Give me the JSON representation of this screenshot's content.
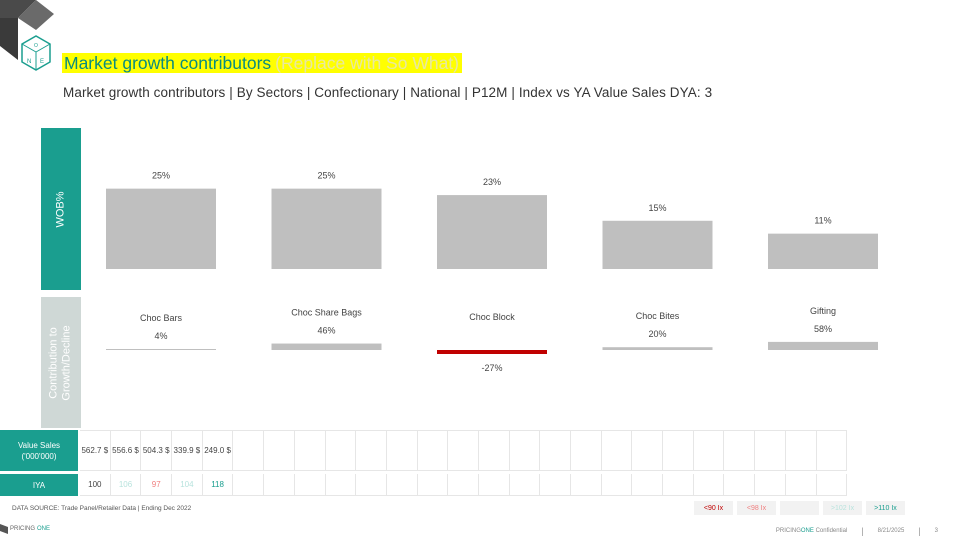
{
  "header": {
    "title_main": "Market growth contributors",
    "title_so_what": "(Replace with So What)",
    "subtitle": "Market growth contributors | By Sectors | Confectionary | National | P12M | Index vs YA Value Sales DYA: 3",
    "logo_text": "ONE"
  },
  "side_labels": {
    "wob": "WOB%",
    "contribution": "Contribution to Growth/Decline"
  },
  "chart_data": [
    {
      "type": "bar",
      "title": "",
      "ylabel": "WOB%",
      "categories": [
        "Choc Bars",
        "Choc Share Bags",
        "Choc Block",
        "Choc Bites",
        "Gifting"
      ],
      "values": [
        25,
        25,
        23,
        15,
        11
      ],
      "value_labels": [
        "25%",
        "25%",
        "23%",
        "15%",
        "11%"
      ],
      "ylim": [
        0,
        28
      ],
      "colors": {
        "bar": "#bfbfbf"
      }
    },
    {
      "type": "bar",
      "title": "",
      "ylabel": "Contribution to Growth/Decline",
      "categories": [
        "Choc Bars",
        "Choc Share Bags",
        "Choc Block",
        "Choc Bites",
        "Gifting"
      ],
      "values": [
        4,
        46,
        -27,
        20,
        58
      ],
      "value_labels": [
        "4%",
        "46%",
        "-27%",
        "20%",
        "58%"
      ],
      "colors": {
        "positive": "#bfbfbf",
        "negative": "#c00000"
      }
    }
  ],
  "table": {
    "value_sales_label": "Value Sales ('000'000)",
    "iya_label": "IYA",
    "value_sales": [
      "562.7 $",
      "556.6 $",
      "504.3 $",
      "339.9 $",
      "249.0 $"
    ],
    "iya": [
      {
        "value": "100",
        "color": "#444444"
      },
      {
        "value": "106",
        "color": "#b8e3dd"
      },
      {
        "value": "97",
        "color": "#f08080"
      },
      {
        "value": "104",
        "color": "#b8e3dd"
      },
      {
        "value": "118",
        "color": "#1a9e8f"
      }
    ],
    "empty_columns": 20
  },
  "legend": [
    "<90 Ix",
    "<98 Ix",
    "",
    ">102 Ix",
    ">110 Ix"
  ],
  "footer": {
    "source": "DATA SOURCE: Trade Panel/Retailer Data | Ending Dec 2022",
    "brand_a": "PRICING",
    "brand_b": "ONE",
    "confidential": "Confidential",
    "date": "8/21/2025",
    "page": "3"
  }
}
